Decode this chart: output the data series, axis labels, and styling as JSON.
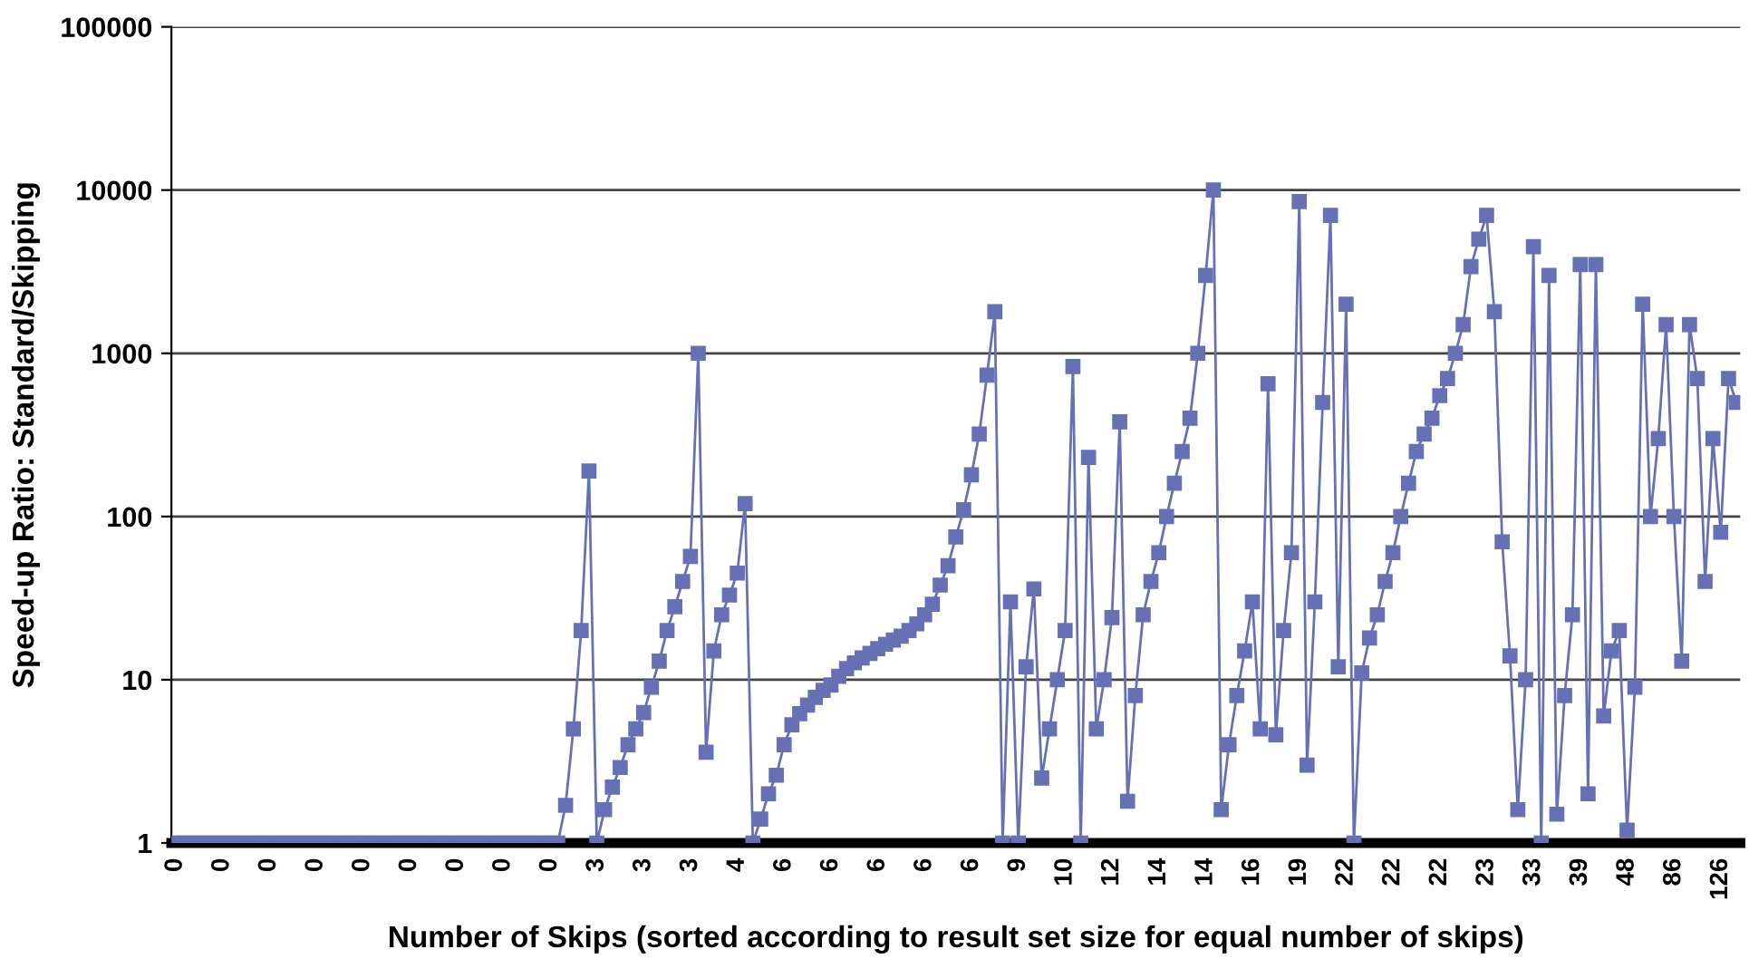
{
  "chart_data": {
    "type": "line",
    "xlabel": "Number of Skips (sorted according to result set size for equal number of skips)",
    "ylabel": "Speed-up Ratio: Standard/Skipping",
    "log": "y",
    "ylim": [
      1,
      100000
    ],
    "yticks": [
      1,
      10,
      100,
      1000,
      10000,
      100000
    ],
    "grid": "y",
    "marker": "square",
    "line_style": "solid",
    "categories": [
      "0",
      null,
      null,
      null,
      null,
      null,
      "0",
      null,
      null,
      null,
      null,
      null,
      "0",
      null,
      null,
      null,
      null,
      null,
      "0",
      null,
      null,
      null,
      null,
      null,
      "0",
      null,
      null,
      null,
      null,
      null,
      "0",
      null,
      null,
      null,
      null,
      null,
      "0",
      null,
      null,
      null,
      null,
      null,
      "0",
      null,
      null,
      null,
      null,
      null,
      "0",
      null,
      null,
      null,
      null,
      null,
      "3",
      null,
      null,
      null,
      null,
      null,
      "3",
      null,
      null,
      null,
      null,
      null,
      "3",
      null,
      null,
      null,
      null,
      null,
      "4",
      null,
      null,
      null,
      null,
      null,
      "6",
      null,
      null,
      null,
      null,
      null,
      "6",
      null,
      null,
      null,
      null,
      null,
      "6",
      null,
      null,
      null,
      null,
      null,
      "6",
      null,
      null,
      null,
      null,
      null,
      "6",
      null,
      null,
      null,
      null,
      null,
      "9",
      null,
      null,
      null,
      null,
      null,
      "10",
      null,
      null,
      null,
      null,
      null,
      "12",
      null,
      null,
      null,
      null,
      null,
      "14",
      null,
      null,
      null,
      null,
      null,
      "14",
      null,
      null,
      null,
      null,
      null,
      "16",
      null,
      null,
      null,
      null,
      null,
      "19",
      null,
      null,
      null,
      null,
      null,
      "22",
      null,
      null,
      null,
      null,
      null,
      "22",
      null,
      null,
      null,
      null,
      null,
      "22",
      null,
      null,
      null,
      null,
      null,
      "23",
      null,
      null,
      null,
      null,
      null,
      "33",
      null,
      null,
      null,
      null,
      null,
      "39",
      null,
      null,
      null,
      null,
      null,
      "48",
      null,
      null,
      null,
      null,
      null,
      "86",
      null,
      null,
      null,
      null,
      null,
      "126",
      null,
      null
    ],
    "series": [
      {
        "color": "#6670b5",
        "values": [
          1,
          1,
          1,
          1,
          1,
          1,
          1,
          1,
          1,
          1,
          1,
          1,
          1,
          1,
          1,
          1,
          1,
          1,
          1,
          1,
          1,
          1,
          1,
          1,
          1,
          1,
          1,
          1,
          1,
          1,
          1,
          1,
          1,
          1,
          1,
          1,
          1,
          1,
          1,
          1,
          1,
          1,
          1,
          1,
          1,
          1,
          1,
          1,
          1,
          1,
          1.7,
          5,
          20,
          190,
          1,
          1.6,
          2.2,
          2.9,
          4,
          5,
          6.3,
          9,
          13,
          20,
          28,
          40,
          57,
          1000,
          3.6,
          15,
          25,
          33,
          45,
          120,
          1,
          1.4,
          2,
          2.6,
          4,
          5.3,
          6.2,
          7,
          7.8,
          8.6,
          9.3,
          10.5,
          11.7,
          12.7,
          13.6,
          14.5,
          15.5,
          16.5,
          17.5,
          18.5,
          20,
          22,
          25,
          29,
          38,
          50,
          75,
          110,
          180,
          320,
          735,
          1800,
          1,
          30,
          1,
          12,
          36,
          2.5,
          5,
          10,
          20,
          830,
          1,
          230,
          5,
          10,
          24,
          380,
          1.8,
          8,
          25,
          40,
          60,
          100,
          160,
          250,
          400,
          1000,
          3000,
          10000,
          1.6,
          4,
          8,
          15,
          30,
          5,
          650,
          4.6,
          20,
          60,
          8500,
          3,
          30,
          500,
          7000,
          12,
          2000,
          1,
          11,
          18,
          25,
          40,
          60,
          100,
          160,
          250,
          320,
          400,
          550,
          700,
          1000,
          1500,
          3400,
          5000,
          7000,
          1800,
          70,
          14,
          1.6,
          10,
          4500,
          1,
          3000,
          1.5,
          8,
          25,
          3500,
          2,
          3500,
          6,
          15,
          20,
          1.2,
          9,
          2000,
          100,
          300,
          1500,
          100,
          13,
          1500,
          700,
          40,
          300,
          80,
          700,
          500
        ]
      }
    ]
  }
}
